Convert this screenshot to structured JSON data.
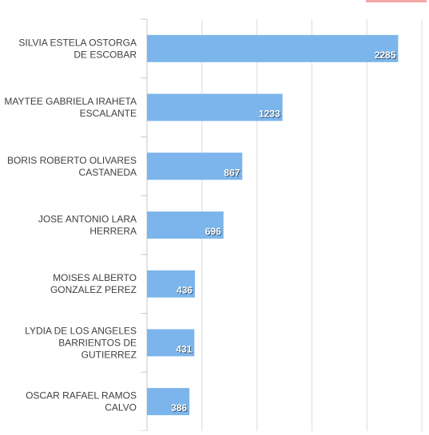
{
  "chart_data": {
    "type": "bar",
    "orientation": "horizontal",
    "categories": [
      "SILVIA ESTELA OSTORGA DE ESCOBAR",
      "MAYTEE GABRIELA IRAHETA ESCALANTE",
      "BORIS ROBERTO OLIVARES CASTANEDA",
      "JOSE ANTONIO LARA HERRERA",
      "MOISES ALBERTO GONZALEZ PEREZ",
      "LYDIA DE LOS ANGELES BARRIENTOS DE GUTIERREZ",
      "OSCAR RAFAEL RAMOS CALVO"
    ],
    "category_lines": [
      [
        "SILVIA ESTELA OSTORGA",
        "DE ESCOBAR"
      ],
      [
        "MAYTEE GABRIELA IRAHETA",
        "ESCALANTE"
      ],
      [
        "BORIS ROBERTO OLIVARES",
        "CASTANEDA"
      ],
      [
        "JOSE ANTONIO LARA",
        "HERRERA"
      ],
      [
        "MOISES ALBERTO",
        "GONZALEZ PEREZ"
      ],
      [
        "LYDIA DE LOS ANGELES",
        "BARRIENTOS DE",
        "GUTIERREZ"
      ],
      [
        "OSCAR RAFAEL RAMOS",
        "CALVO"
      ]
    ],
    "values": [
      2285,
      1233,
      867,
      696,
      436,
      431,
      386
    ],
    "data_labels": [
      "2285",
      "1233",
      "867",
      "696",
      "436",
      "431",
      "386"
    ],
    "xlim": [
      0,
      2500
    ],
    "grid": "vertical",
    "bar_color": "#7cb5ec",
    "title": "",
    "xlabel": "",
    "ylabel": ""
  }
}
